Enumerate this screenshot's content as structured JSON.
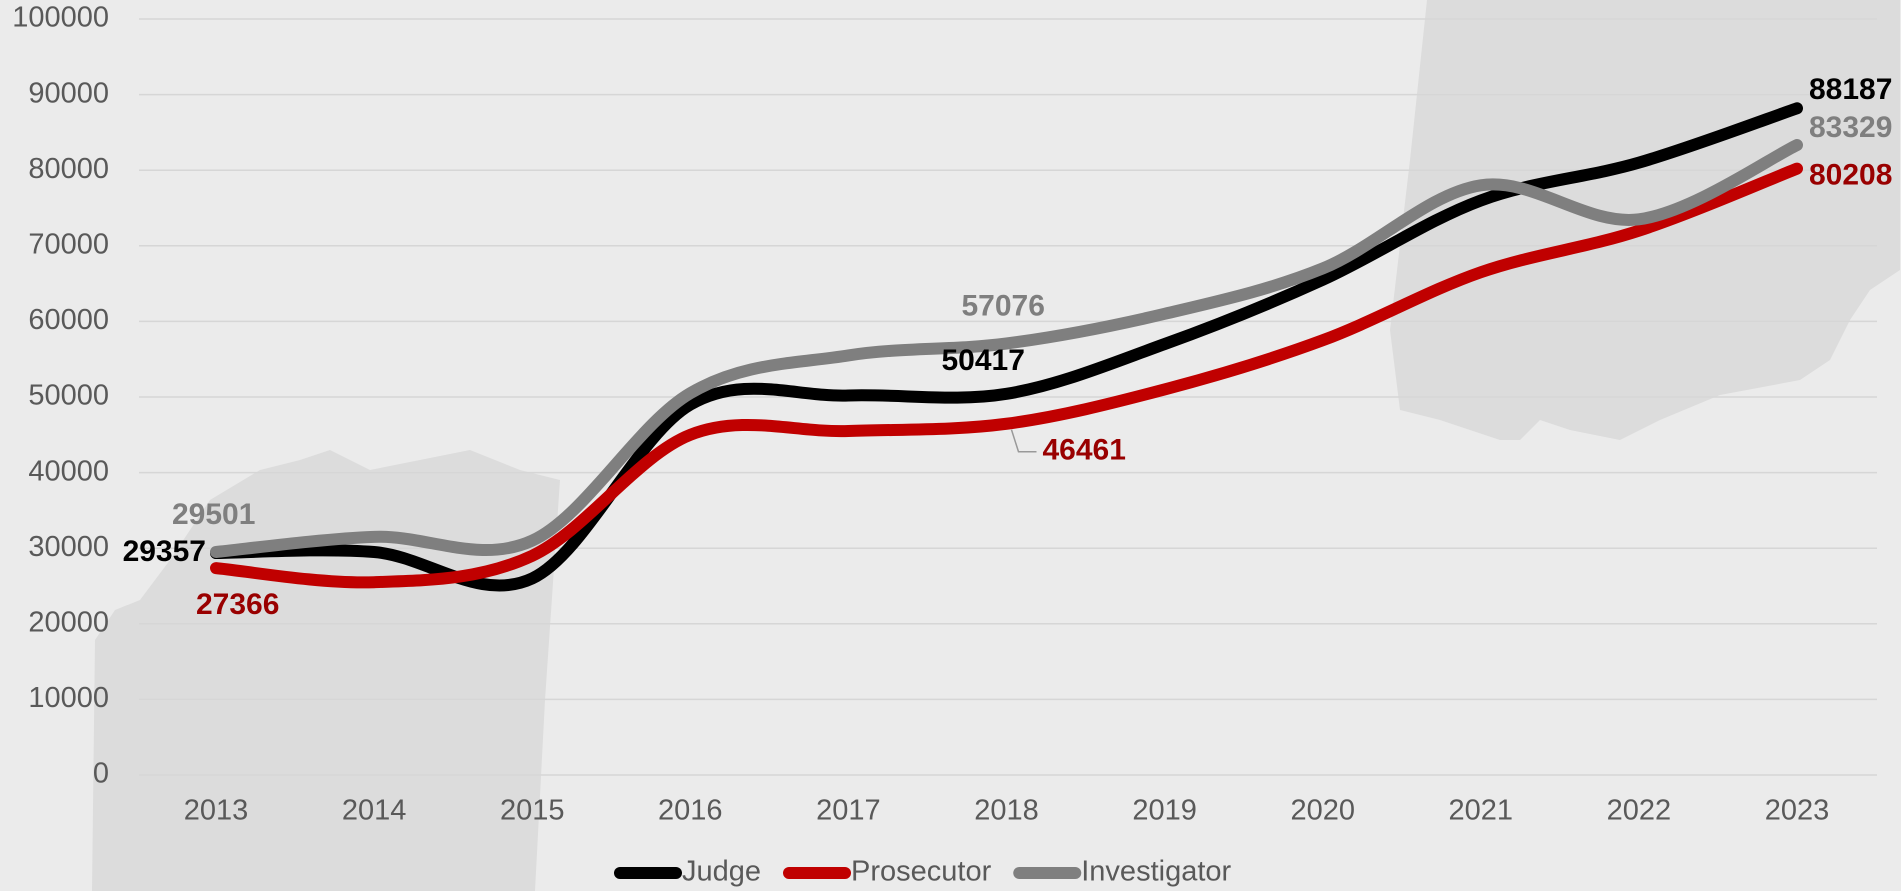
{
  "chart_data": {
    "type": "line",
    "categories": [
      "2013",
      "2014",
      "2015",
      "2016",
      "2017",
      "2018",
      "2019",
      "2020",
      "2021",
      "2022",
      "2023"
    ],
    "series": [
      {
        "name": "Judge",
        "color": "#000000",
        "label_color": "#000000",
        "values": [
          29357,
          29500,
          26000,
          49000,
          50200,
          50417,
          57000,
          65500,
          76000,
          81000,
          88187
        ]
      },
      {
        "name": "Prosecutor",
        "color": "#c00000",
        "label_color": "#990000",
        "values": [
          27366,
          25500,
          29000,
          45000,
          45500,
          46461,
          51000,
          57500,
          66500,
          72000,
          80208
        ]
      },
      {
        "name": "Investigator",
        "color": "#7f7f7f",
        "label_color": "#7f7f7f",
        "values": [
          29501,
          31500,
          31000,
          50500,
          55500,
          57076,
          61000,
          67000,
          78000,
          73500,
          83329
        ]
      }
    ],
    "labeled_points": [
      0,
      5,
      10
    ],
    "ylim": [
      0,
      100000
    ],
    "yticks": [
      0,
      10000,
      20000,
      30000,
      40000,
      50000,
      60000,
      70000,
      80000,
      90000,
      100000
    ],
    "grid": true,
    "smooth": true,
    "legend": "bottom"
  }
}
